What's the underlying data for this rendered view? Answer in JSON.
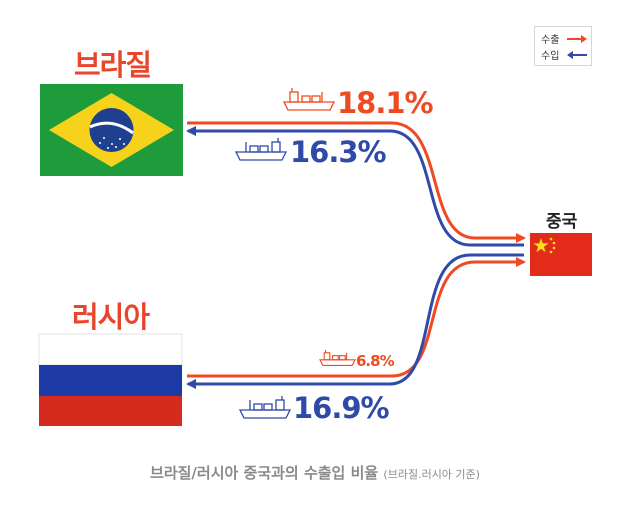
{
  "legend": {
    "export_label": "수출",
    "import_label": "수입",
    "export_color": "#f04a23",
    "import_color": "#2f4aa8"
  },
  "brazil": {
    "name": "브라질",
    "export_to_china": "18.1%",
    "import_from_china": "16.3%"
  },
  "russia": {
    "name": "러시아",
    "export_to_china": "6.8%",
    "import_from_china": "16.9%"
  },
  "china": {
    "name": "중국"
  },
  "caption": {
    "main": "브라질/러시아 중국과의 수출입 비율",
    "note": "(브라질.러시아 기준)"
  }
}
